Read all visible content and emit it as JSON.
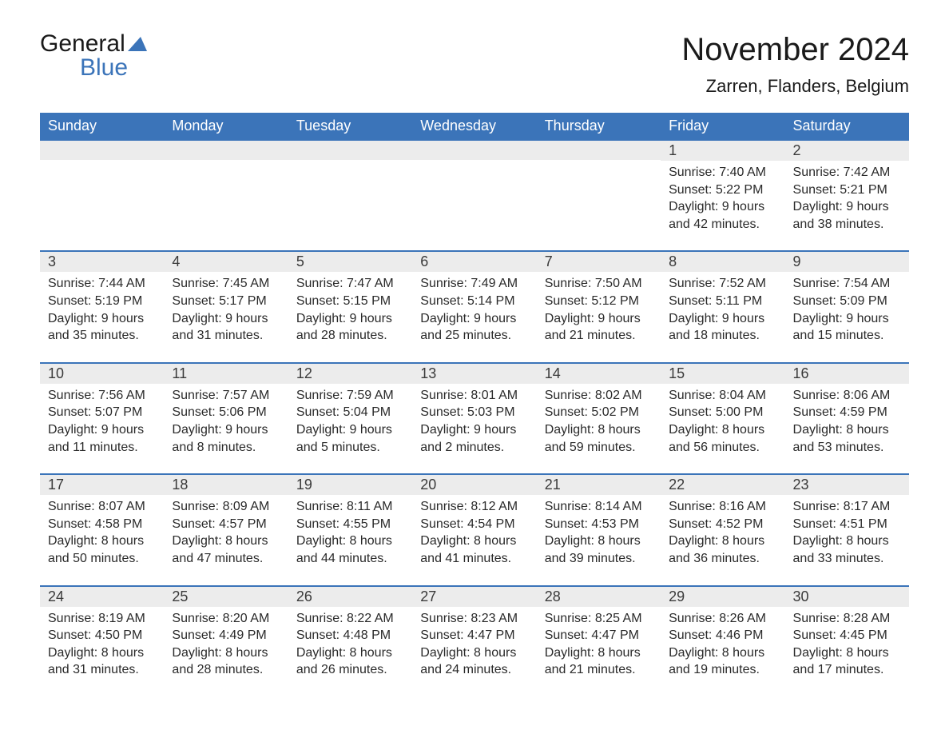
{
  "logo": {
    "text_general": "General",
    "text_blue": "Blue"
  },
  "header": {
    "month_title": "November 2024",
    "location": "Zarren, Flanders, Belgium"
  },
  "colors": {
    "accent": "#3b74b9",
    "header_text": "#ffffff",
    "day_bar_bg": "#ececec",
    "body_text": "#2a2a2a",
    "title_text": "#1a1a1a"
  },
  "day_headers": [
    "Sunday",
    "Monday",
    "Tuesday",
    "Wednesday",
    "Thursday",
    "Friday",
    "Saturday"
  ],
  "weeks": [
    [
      {
        "day": "",
        "sunrise": "",
        "sunset": "",
        "daylight1": "",
        "daylight2": ""
      },
      {
        "day": "",
        "sunrise": "",
        "sunset": "",
        "daylight1": "",
        "daylight2": ""
      },
      {
        "day": "",
        "sunrise": "",
        "sunset": "",
        "daylight1": "",
        "daylight2": ""
      },
      {
        "day": "",
        "sunrise": "",
        "sunset": "",
        "daylight1": "",
        "daylight2": ""
      },
      {
        "day": "",
        "sunrise": "",
        "sunset": "",
        "daylight1": "",
        "daylight2": ""
      },
      {
        "day": "1",
        "sunrise": "Sunrise: 7:40 AM",
        "sunset": "Sunset: 5:22 PM",
        "daylight1": "Daylight: 9 hours",
        "daylight2": "and 42 minutes."
      },
      {
        "day": "2",
        "sunrise": "Sunrise: 7:42 AM",
        "sunset": "Sunset: 5:21 PM",
        "daylight1": "Daylight: 9 hours",
        "daylight2": "and 38 minutes."
      }
    ],
    [
      {
        "day": "3",
        "sunrise": "Sunrise: 7:44 AM",
        "sunset": "Sunset: 5:19 PM",
        "daylight1": "Daylight: 9 hours",
        "daylight2": "and 35 minutes."
      },
      {
        "day": "4",
        "sunrise": "Sunrise: 7:45 AM",
        "sunset": "Sunset: 5:17 PM",
        "daylight1": "Daylight: 9 hours",
        "daylight2": "and 31 minutes."
      },
      {
        "day": "5",
        "sunrise": "Sunrise: 7:47 AM",
        "sunset": "Sunset: 5:15 PM",
        "daylight1": "Daylight: 9 hours",
        "daylight2": "and 28 minutes."
      },
      {
        "day": "6",
        "sunrise": "Sunrise: 7:49 AM",
        "sunset": "Sunset: 5:14 PM",
        "daylight1": "Daylight: 9 hours",
        "daylight2": "and 25 minutes."
      },
      {
        "day": "7",
        "sunrise": "Sunrise: 7:50 AM",
        "sunset": "Sunset: 5:12 PM",
        "daylight1": "Daylight: 9 hours",
        "daylight2": "and 21 minutes."
      },
      {
        "day": "8",
        "sunrise": "Sunrise: 7:52 AM",
        "sunset": "Sunset: 5:11 PM",
        "daylight1": "Daylight: 9 hours",
        "daylight2": "and 18 minutes."
      },
      {
        "day": "9",
        "sunrise": "Sunrise: 7:54 AM",
        "sunset": "Sunset: 5:09 PM",
        "daylight1": "Daylight: 9 hours",
        "daylight2": "and 15 minutes."
      }
    ],
    [
      {
        "day": "10",
        "sunrise": "Sunrise: 7:56 AM",
        "sunset": "Sunset: 5:07 PM",
        "daylight1": "Daylight: 9 hours",
        "daylight2": "and 11 minutes."
      },
      {
        "day": "11",
        "sunrise": "Sunrise: 7:57 AM",
        "sunset": "Sunset: 5:06 PM",
        "daylight1": "Daylight: 9 hours",
        "daylight2": "and 8 minutes."
      },
      {
        "day": "12",
        "sunrise": "Sunrise: 7:59 AM",
        "sunset": "Sunset: 5:04 PM",
        "daylight1": "Daylight: 9 hours",
        "daylight2": "and 5 minutes."
      },
      {
        "day": "13",
        "sunrise": "Sunrise: 8:01 AM",
        "sunset": "Sunset: 5:03 PM",
        "daylight1": "Daylight: 9 hours",
        "daylight2": "and 2 minutes."
      },
      {
        "day": "14",
        "sunrise": "Sunrise: 8:02 AM",
        "sunset": "Sunset: 5:02 PM",
        "daylight1": "Daylight: 8 hours",
        "daylight2": "and 59 minutes."
      },
      {
        "day": "15",
        "sunrise": "Sunrise: 8:04 AM",
        "sunset": "Sunset: 5:00 PM",
        "daylight1": "Daylight: 8 hours",
        "daylight2": "and 56 minutes."
      },
      {
        "day": "16",
        "sunrise": "Sunrise: 8:06 AM",
        "sunset": "Sunset: 4:59 PM",
        "daylight1": "Daylight: 8 hours",
        "daylight2": "and 53 minutes."
      }
    ],
    [
      {
        "day": "17",
        "sunrise": "Sunrise: 8:07 AM",
        "sunset": "Sunset: 4:58 PM",
        "daylight1": "Daylight: 8 hours",
        "daylight2": "and 50 minutes."
      },
      {
        "day": "18",
        "sunrise": "Sunrise: 8:09 AM",
        "sunset": "Sunset: 4:57 PM",
        "daylight1": "Daylight: 8 hours",
        "daylight2": "and 47 minutes."
      },
      {
        "day": "19",
        "sunrise": "Sunrise: 8:11 AM",
        "sunset": "Sunset: 4:55 PM",
        "daylight1": "Daylight: 8 hours",
        "daylight2": "and 44 minutes."
      },
      {
        "day": "20",
        "sunrise": "Sunrise: 8:12 AM",
        "sunset": "Sunset: 4:54 PM",
        "daylight1": "Daylight: 8 hours",
        "daylight2": "and 41 minutes."
      },
      {
        "day": "21",
        "sunrise": "Sunrise: 8:14 AM",
        "sunset": "Sunset: 4:53 PM",
        "daylight1": "Daylight: 8 hours",
        "daylight2": "and 39 minutes."
      },
      {
        "day": "22",
        "sunrise": "Sunrise: 8:16 AM",
        "sunset": "Sunset: 4:52 PM",
        "daylight1": "Daylight: 8 hours",
        "daylight2": "and 36 minutes."
      },
      {
        "day": "23",
        "sunrise": "Sunrise: 8:17 AM",
        "sunset": "Sunset: 4:51 PM",
        "daylight1": "Daylight: 8 hours",
        "daylight2": "and 33 minutes."
      }
    ],
    [
      {
        "day": "24",
        "sunrise": "Sunrise: 8:19 AM",
        "sunset": "Sunset: 4:50 PM",
        "daylight1": "Daylight: 8 hours",
        "daylight2": "and 31 minutes."
      },
      {
        "day": "25",
        "sunrise": "Sunrise: 8:20 AM",
        "sunset": "Sunset: 4:49 PM",
        "daylight1": "Daylight: 8 hours",
        "daylight2": "and 28 minutes."
      },
      {
        "day": "26",
        "sunrise": "Sunrise: 8:22 AM",
        "sunset": "Sunset: 4:48 PM",
        "daylight1": "Daylight: 8 hours",
        "daylight2": "and 26 minutes."
      },
      {
        "day": "27",
        "sunrise": "Sunrise: 8:23 AM",
        "sunset": "Sunset: 4:47 PM",
        "daylight1": "Daylight: 8 hours",
        "daylight2": "and 24 minutes."
      },
      {
        "day": "28",
        "sunrise": "Sunrise: 8:25 AM",
        "sunset": "Sunset: 4:47 PM",
        "daylight1": "Daylight: 8 hours",
        "daylight2": "and 21 minutes."
      },
      {
        "day": "29",
        "sunrise": "Sunrise: 8:26 AM",
        "sunset": "Sunset: 4:46 PM",
        "daylight1": "Daylight: 8 hours",
        "daylight2": "and 19 minutes."
      },
      {
        "day": "30",
        "sunrise": "Sunrise: 8:28 AM",
        "sunset": "Sunset: 4:45 PM",
        "daylight1": "Daylight: 8 hours",
        "daylight2": "and 17 minutes."
      }
    ]
  ]
}
